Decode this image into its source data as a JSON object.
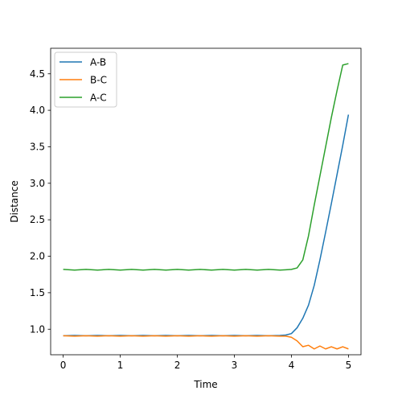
{
  "chart_data": {
    "type": "line",
    "title": "",
    "xlabel": "Time",
    "ylabel": "Distance",
    "xlim": [
      -0.22,
      5.22
    ],
    "ylim": [
      0.65,
      4.85
    ],
    "xticks": [
      0,
      1,
      2,
      3,
      4,
      5
    ],
    "xtick_labels": [
      "0",
      "1",
      "2",
      "3",
      "4",
      "5"
    ],
    "yticks": [
      1.0,
      1.5,
      2.0,
      2.5,
      3.0,
      3.5,
      4.0,
      4.5
    ],
    "ytick_labels": [
      "1.0",
      "1.5",
      "2.0",
      "2.5",
      "3.0",
      "3.5",
      "4.0",
      "4.5"
    ],
    "grid": false,
    "legend_position": "top-left",
    "x": [
      0,
      0.2,
      0.4,
      0.6,
      0.8,
      1.0,
      1.2,
      1.4,
      1.6,
      1.8,
      2.0,
      2.2,
      2.4,
      2.6,
      2.8,
      3.0,
      3.2,
      3.4,
      3.6,
      3.8,
      3.9,
      4.0,
      4.1,
      4.2,
      4.3,
      4.4,
      4.5,
      4.6,
      4.7,
      4.8,
      4.9,
      5.0
    ],
    "series": [
      {
        "name": "A-B",
        "color": "#1f77b4",
        "values": [
          0.91,
          0.915,
          0.91,
          0.915,
          0.91,
          0.915,
          0.91,
          0.915,
          0.91,
          0.915,
          0.91,
          0.915,
          0.91,
          0.915,
          0.91,
          0.915,
          0.91,
          0.915,
          0.91,
          0.915,
          0.92,
          0.94,
          1.02,
          1.15,
          1.33,
          1.6,
          1.95,
          2.33,
          2.72,
          3.12,
          3.52,
          3.94
        ]
      },
      {
        "name": "B-C",
        "color": "#ff7f0e",
        "values": [
          0.91,
          0.905,
          0.91,
          0.905,
          0.91,
          0.905,
          0.91,
          0.905,
          0.91,
          0.905,
          0.91,
          0.905,
          0.91,
          0.905,
          0.91,
          0.905,
          0.91,
          0.905,
          0.91,
          0.905,
          0.905,
          0.89,
          0.84,
          0.76,
          0.78,
          0.73,
          0.77,
          0.73,
          0.76,
          0.73,
          0.76,
          0.73
        ]
      },
      {
        "name": "A-C",
        "color": "#2ca02c",
        "values": [
          1.82,
          1.81,
          1.82,
          1.81,
          1.82,
          1.81,
          1.82,
          1.81,
          1.82,
          1.81,
          1.82,
          1.81,
          1.82,
          1.81,
          1.82,
          1.81,
          1.82,
          1.81,
          1.82,
          1.81,
          1.815,
          1.82,
          1.84,
          1.95,
          2.28,
          2.7,
          3.1,
          3.5,
          3.9,
          4.27,
          4.62,
          4.64
        ]
      }
    ]
  }
}
